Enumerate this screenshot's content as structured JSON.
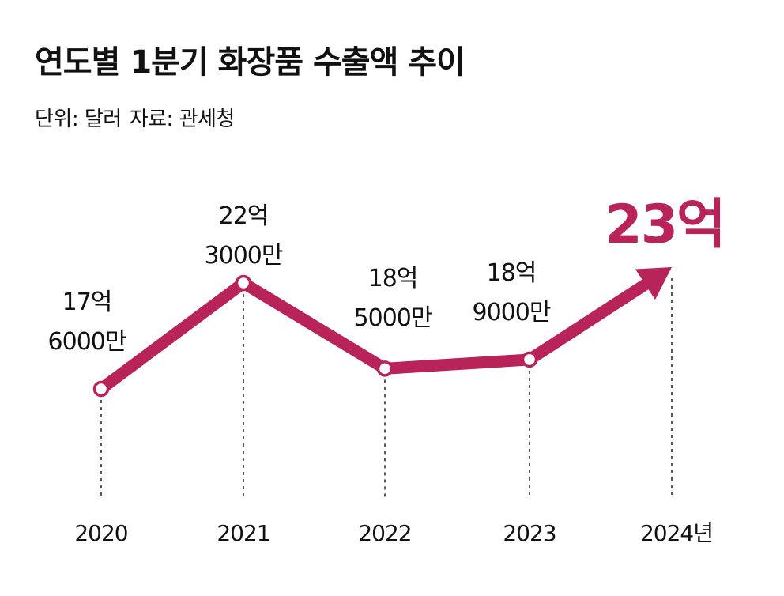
{
  "header": {
    "title": "연도별 1분기 화장품 수출액 추이",
    "unit": "단위: 달러",
    "source": "자료: 관세청"
  },
  "colors": {
    "accent": "#b8235a",
    "text": "#111111",
    "guide": "#222222"
  },
  "chart_data": {
    "type": "line",
    "title": "연도별 1분기 화장품 수출액 추이",
    "xlabel": "",
    "ylabel": "",
    "unit": "달러",
    "x": [
      "2020",
      "2021",
      "2022",
      "2023",
      "2024년"
    ],
    "values": [
      1760000000,
      2230000000,
      1850000000,
      1890000000,
      2300000000
    ],
    "data_labels": [
      [
        "17억",
        "6000만"
      ],
      [
        "22억",
        "3000만"
      ],
      [
        "18억",
        "5000만"
      ],
      [
        "18억",
        "9000만"
      ],
      [
        "23억"
      ]
    ],
    "highlight_last": true,
    "last_point_marker": "arrow",
    "grid": false,
    "legend": "none"
  }
}
